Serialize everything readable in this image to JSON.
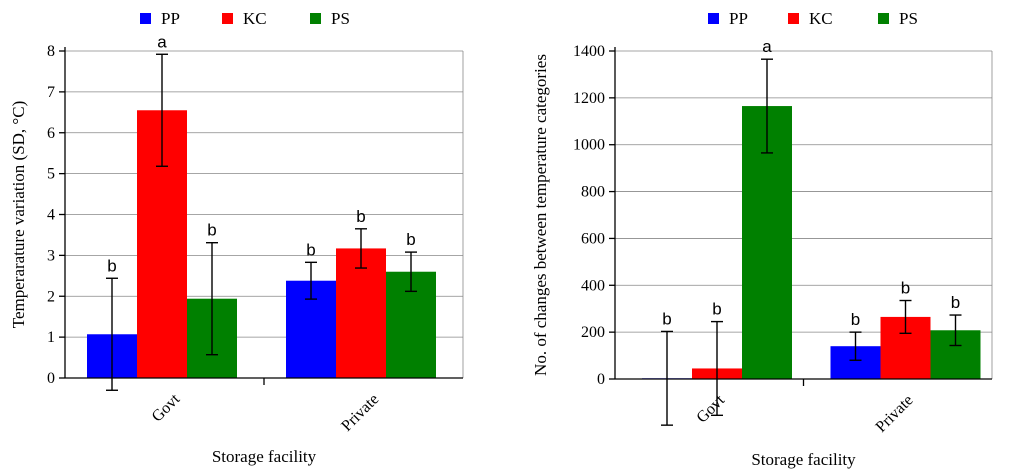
{
  "chart_data": [
    {
      "type": "bar",
      "categories": [
        "Govt",
        "Private"
      ],
      "series": [
        {
          "name": "PP",
          "color": "#0000ff",
          "values": [
            1.07,
            2.38
          ],
          "err": [
            1.37,
            0.45
          ],
          "sig": [
            "b",
            "b"
          ]
        },
        {
          "name": "KC",
          "color": "#ff0000",
          "values": [
            6.55,
            3.17
          ],
          "err": [
            1.37,
            0.48
          ],
          "sig": [
            "a",
            "b"
          ]
        },
        {
          "name": "PS",
          "color": "#008000",
          "values": [
            1.94,
            2.6
          ],
          "err": [
            1.37,
            0.48
          ],
          "sig": [
            "b",
            "b"
          ]
        }
      ],
      "xlabel": "Storage facility",
      "ylabel": "Temperarature variation (SD, °C)",
      "ylim": [
        0,
        8
      ],
      "yticks": [
        0,
        1,
        2,
        3,
        4,
        5,
        6,
        7,
        8
      ],
      "grid": true,
      "legend": "top"
    },
    {
      "type": "bar",
      "categories": [
        "Govt",
        "Private"
      ],
      "series": [
        {
          "name": "PP",
          "color": "#0000ff",
          "values": [
            3,
            140
          ],
          "err": [
            200,
            60
          ],
          "sig": [
            "b",
            "b"
          ]
        },
        {
          "name": "KC",
          "color": "#ff0000",
          "values": [
            45,
            265
          ],
          "err": [
            200,
            70
          ],
          "sig": [
            "b",
            "b"
          ]
        },
        {
          "name": "PS",
          "color": "#008000",
          "values": [
            1165,
            208
          ],
          "err": [
            200,
            65
          ],
          "sig": [
            "a",
            "b"
          ]
        }
      ],
      "xlabel": "Storage facility",
      "ylabel": "No. of changes between temperature categories",
      "ylim": [
        0,
        1400
      ],
      "yticks": [
        0,
        200,
        400,
        600,
        800,
        1000,
        1200,
        1400
      ],
      "grid": true,
      "legend": "top"
    }
  ]
}
